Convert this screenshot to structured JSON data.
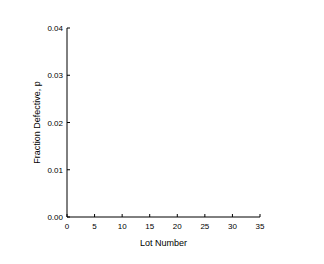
{
  "chart_data": {
    "type": "scatter",
    "x_label": "Lot Number",
    "y_label": "Fraction Defective, p",
    "xlim": [
      0,
      35
    ],
    "xticks": [
      0,
      5,
      10,
      15,
      20,
      25,
      30,
      35
    ],
    "ylim": [
      0,
      0.04
    ],
    "yticks": [
      {
        "value": 0,
        "label": "0.00"
      },
      {
        "value": 0.01,
        "label": "0.01"
      },
      {
        "value": 0.02,
        "label": "0.02"
      },
      {
        "value": 0.03,
        "label": "0.03"
      },
      {
        "value": 0.04,
        "label": "0.04"
      }
    ],
    "grid": false
  }
}
